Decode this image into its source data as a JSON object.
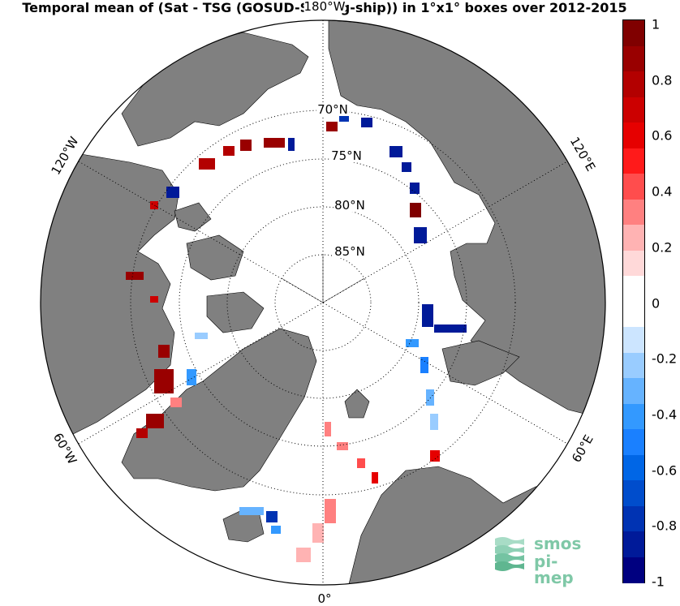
{
  "title": "Temporal mean of (Sat - TSG (GOSUD-Sailing-ship)) in 1°x1° boxes over 2012-2015",
  "lat_labels": [
    {
      "text": "70°N",
      "lat": 70
    },
    {
      "text": "75°N",
      "lat": 75
    },
    {
      "text": "80°N",
      "lat": 80
    },
    {
      "text": "85°N",
      "lat": 85
    }
  ],
  "lon_labels": [
    {
      "text": "180°W",
      "lon": 180
    },
    {
      "text": "120°E",
      "lon": 120
    },
    {
      "text": "60°E",
      "lon": 60
    },
    {
      "text": "0°",
      "lon": 0
    },
    {
      "text": "60°W",
      "lon": -60
    },
    {
      "text": "120°W",
      "lon": -120
    }
  ],
  "colorbar": {
    "min": -1,
    "max": 1,
    "ticks": [
      "1",
      "0.8",
      "0.6",
      "0.4",
      "0.2",
      "0",
      "-0.2",
      "-0.4",
      "-0.6",
      "-0.8",
      "-1"
    ],
    "colors_top_to_bottom": [
      "#800000",
      "#990000",
      "#b30000",
      "#cc0000",
      "#e60000",
      "#ff1a1a",
      "#ff4d4d",
      "#ff8080",
      "#ffb3b3",
      "#ffd9d9",
      "#ffffff",
      "#ffffff",
      "#cce5ff",
      "#99ccff",
      "#66b3ff",
      "#3399ff",
      "#1a80ff",
      "#0066e6",
      "#004dcc",
      "#0033b3",
      "#001a99",
      "#000080"
    ]
  },
  "colors": {
    "land": "#808080",
    "ocean": "#ffffff",
    "grid": "#000000"
  },
  "logo": {
    "line1": "smos",
    "line2": "pi-mep"
  }
}
